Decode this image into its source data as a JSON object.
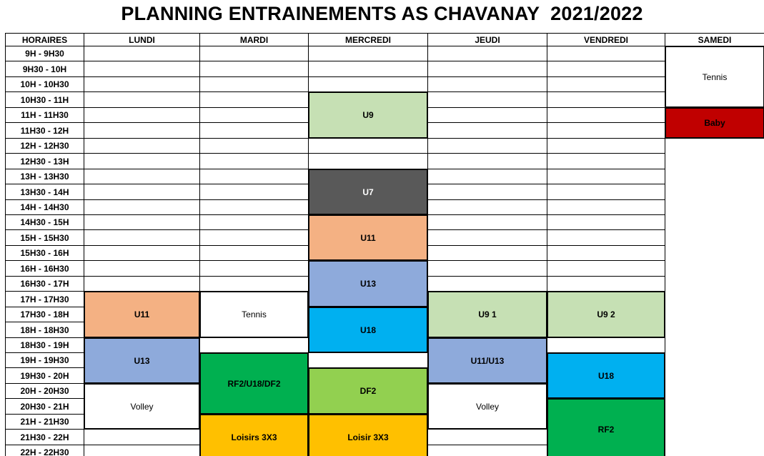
{
  "title": "PLANNING ENTRAINEMENTS AS CHAVANAY  2021/2022",
  "schedule": {
    "time_header": "HORAIRES",
    "days": [
      "LUNDI",
      "MARDI",
      "MERCREDI",
      "JEUDI",
      "VENDREDI",
      "SAMEDI"
    ],
    "time_slots": [
      "9H - 9H30",
      "9H30 - 10H",
      "10H - 10H30",
      "10H30 - 11H",
      "11H - 11H30",
      "11H30 - 12H",
      "12H - 12H30",
      "12H30 - 13H",
      "13H - 13H30",
      "13H30 - 14H",
      "14H - 14H30",
      "14H30 - 15H",
      "15H - 15H30",
      "15H30 - 16H",
      "16H - 16H30",
      "16H30 - 17H",
      "17H - 17H30",
      "17H30 - 18H",
      "18H - 18H30",
      "18H30 - 19H",
      "19H - 19H30",
      "19H30 - 20H",
      "20H - 20H30",
      "20H30 - 21H",
      "21H - 21H30",
      "21H30 - 22H",
      "22H - 22H30"
    ],
    "palette": {
      "light_green": "#c6e0b4",
      "dark_gray": "#595959",
      "salmon": "#f4b183",
      "blue": "#8eaadb",
      "cyan": "#00b0f0",
      "green": "#00b050",
      "yellow_green": "#92d050",
      "gold": "#ffc000",
      "dark_red": "#c00000",
      "white": "#ffffff"
    },
    "blocks": [
      {
        "day": "LUNDI",
        "label": "U11",
        "color": "salmon",
        "start": "17H - 17H30",
        "end": "18H - 18H30"
      },
      {
        "day": "LUNDI",
        "label": "U13",
        "color": "blue",
        "start": "18H30 - 19H",
        "end": "19H30 - 20H"
      },
      {
        "day": "LUNDI",
        "label": "Volley",
        "color": "white",
        "start": "20H - 20H30",
        "end": "21H - 21H30"
      },
      {
        "day": "MARDI",
        "label": "Tennis",
        "color": "white",
        "start": "17H - 17H30",
        "end": "18H - 18H30"
      },
      {
        "day": "MARDI",
        "label": "RF2/U18/DF2",
        "color": "green",
        "start": "19H - 19H30",
        "end": "20H30 - 21H"
      },
      {
        "day": "MARDI",
        "label": "Loisirs 3X3",
        "color": "gold",
        "start": "21H - 21H30",
        "end": "22H - 22H30"
      },
      {
        "day": "MERCREDI",
        "label": "U9",
        "color": "light_green",
        "start": "10H30 - 11H",
        "end": "11H30 - 12H"
      },
      {
        "day": "MERCREDI",
        "label": "U7",
        "color": "dark_gray",
        "start": "13H - 13H30",
        "end": "14H - 14H30",
        "text_color": "#ffffff"
      },
      {
        "day": "MERCREDI",
        "label": "U11",
        "color": "salmon",
        "start": "14H30 - 15H",
        "end": "15H30 - 16H"
      },
      {
        "day": "MERCREDI",
        "label": "U13",
        "color": "blue",
        "start": "16H - 16H30",
        "end": "17H - 17H30"
      },
      {
        "day": "MERCREDI",
        "label": "U18",
        "color": "cyan",
        "start": "17H30 - 18H",
        "end": "18H30 - 19H"
      },
      {
        "day": "MERCREDI",
        "label": "DF2",
        "color": "yellow_green",
        "start": "19H30 - 20H",
        "end": "20H30 - 21H"
      },
      {
        "day": "MERCREDI",
        "label": "Loisir 3X3",
        "color": "gold",
        "start": "21H - 21H30",
        "end": "22H - 22H30"
      },
      {
        "day": "JEUDI",
        "label": "U9 1",
        "color": "light_green",
        "start": "17H - 17H30",
        "end": "18H - 18H30"
      },
      {
        "day": "JEUDI",
        "label": "U11/U13",
        "color": "blue",
        "start": "18H30 - 19H",
        "end": "19H30 - 20H"
      },
      {
        "day": "JEUDI",
        "label": "Volley",
        "color": "white",
        "start": "20H - 20H30",
        "end": "21H - 21H30"
      },
      {
        "day": "VENDREDI",
        "label": "U9 2",
        "color": "light_green",
        "start": "17H - 17H30",
        "end": "18H - 18H30"
      },
      {
        "day": "VENDREDI",
        "label": "U18",
        "color": "cyan",
        "start": "19H - 19H30",
        "end": "20H - 20H30"
      },
      {
        "day": "VENDREDI",
        "label": "RF2",
        "color": "green",
        "start": "20H30 - 21H",
        "end": "22H - 22H30"
      },
      {
        "day": "SAMEDI",
        "label": "Tennis",
        "color": "white",
        "start": "9H - 9H30",
        "end": "10H30 - 11H"
      },
      {
        "day": "SAMEDI",
        "label": "Baby",
        "color": "dark_red",
        "start": "11H - 11H30",
        "end": "11H30 - 12H"
      }
    ]
  }
}
